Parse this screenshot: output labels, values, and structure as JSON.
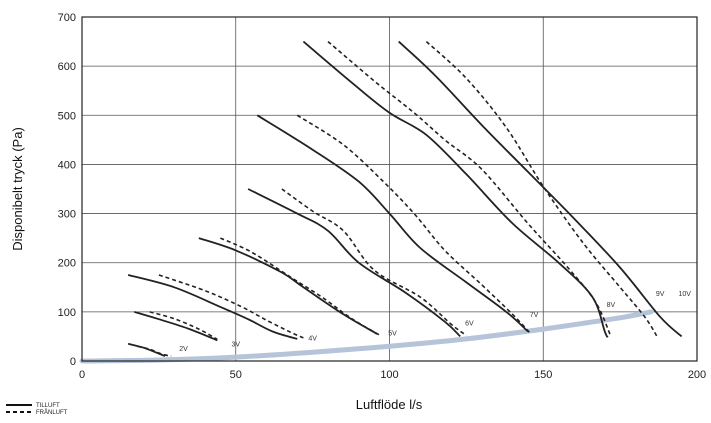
{
  "chart_data": {
    "type": "line",
    "xlabel": "Luftflöde l/s",
    "ylabel": "Disponibelt tryck (Pa)",
    "xlim": [
      0,
      200
    ],
    "ylim": [
      0,
      700
    ],
    "xticks": [
      0,
      50,
      100,
      150,
      200
    ],
    "yticks": [
      0,
      100,
      200,
      300,
      400,
      500,
      600,
      700
    ],
    "grid": true,
    "legend_position": "bottom-left",
    "legend": [
      {
        "label": "TILLUFT",
        "style": "solid"
      },
      {
        "label": "FRÅNLUFT",
        "style": "dashed"
      }
    ],
    "system_curve": {
      "color": "#b5c4d8",
      "points": [
        [
          0,
          0
        ],
        [
          25,
          2
        ],
        [
          50,
          8
        ],
        [
          75,
          18
        ],
        [
          100,
          30
        ],
        [
          125,
          45
        ],
        [
          150,
          65
        ],
        [
          175,
          88
        ],
        [
          185,
          100
        ]
      ]
    },
    "series": [
      {
        "voltage": "2V",
        "label_at": [
          33,
          20
        ],
        "tilluft": [
          [
            15,
            35
          ],
          [
            20,
            27
          ],
          [
            25,
            15
          ],
          [
            27,
            10
          ]
        ],
        "franluft": [
          [
            18,
            30
          ],
          [
            22,
            24
          ],
          [
            26,
            14
          ],
          [
            29,
            10
          ]
        ]
      },
      {
        "voltage": "3V",
        "label_at": [
          50,
          30
        ],
        "tilluft": [
          [
            17,
            100
          ],
          [
            25,
            85
          ],
          [
            35,
            65
          ],
          [
            44,
            42
          ]
        ],
        "franluft": [
          [
            22,
            100
          ],
          [
            30,
            86
          ],
          [
            38,
            65
          ],
          [
            44,
            44
          ]
        ]
      },
      {
        "voltage": "4V",
        "label_at": [
          75,
          42
        ],
        "tilluft": [
          [
            15,
            175
          ],
          [
            30,
            150
          ],
          [
            45,
            110
          ],
          [
            54,
            85
          ],
          [
            62,
            60
          ],
          [
            70,
            45
          ]
        ],
        "franluft": [
          [
            25,
            175
          ],
          [
            40,
            143
          ],
          [
            52,
            110
          ],
          [
            60,
            83
          ],
          [
            68,
            58
          ],
          [
            72,
            47
          ]
        ]
      },
      {
        "voltage": "5V",
        "label_at": [
          101,
          52
        ],
        "tilluft": [
          [
            38,
            250
          ],
          [
            50,
            225
          ],
          [
            65,
            180
          ],
          [
            72,
            150
          ],
          [
            85,
            95
          ],
          [
            96,
            55
          ]
        ],
        "franluft": [
          [
            45,
            250
          ],
          [
            55,
            222
          ],
          [
            68,
            170
          ],
          [
            78,
            130
          ],
          [
            88,
            85
          ],
          [
            97,
            52
          ]
        ]
      },
      {
        "voltage": "6V",
        "label_at": [
          126,
          72
        ],
        "tilluft": [
          [
            54,
            350
          ],
          [
            70,
            300
          ],
          [
            80,
            265
          ],
          [
            90,
            200
          ],
          [
            105,
            140
          ],
          [
            118,
            80
          ],
          [
            123,
            50
          ]
        ],
        "franluft": [
          [
            65,
            350
          ],
          [
            75,
            305
          ],
          [
            85,
            265
          ],
          [
            95,
            185
          ],
          [
            110,
            130
          ],
          [
            120,
            75
          ],
          [
            125,
            52
          ]
        ]
      },
      {
        "voltage": "7V",
        "label_at": [
          147,
          90
        ],
        "tilluft": [
          [
            57,
            500
          ],
          [
            75,
            430
          ],
          [
            90,
            365
          ],
          [
            100,
            300
          ],
          [
            110,
            230
          ],
          [
            125,
            160
          ],
          [
            138,
            100
          ],
          [
            145,
            60
          ]
        ],
        "franluft": [
          [
            70,
            500
          ],
          [
            85,
            440
          ],
          [
            98,
            365
          ],
          [
            108,
            300
          ],
          [
            118,
            225
          ],
          [
            130,
            155
          ],
          [
            140,
            95
          ],
          [
            146,
            55
          ]
        ]
      },
      {
        "voltage": "8V",
        "label_at": [
          172,
          110
        ],
        "tilluft": [
          [
            72,
            650
          ],
          [
            88,
            565
          ],
          [
            100,
            505
          ],
          [
            112,
            460
          ],
          [
            125,
            380
          ],
          [
            140,
            280
          ],
          [
            155,
            200
          ],
          [
            166,
            130
          ],
          [
            170,
            60
          ],
          [
            171,
            48
          ]
        ],
        "franluft": [
          [
            80,
            650
          ],
          [
            95,
            570
          ],
          [
            108,
            505
          ],
          [
            118,
            450
          ],
          [
            130,
            390
          ],
          [
            145,
            280
          ],
          [
            158,
            190
          ],
          [
            167,
            120
          ],
          [
            172,
            50
          ]
        ]
      },
      {
        "voltage": "9V",
        "label_at": [
          188,
          132
        ],
        "tilluft": [
          [
            103,
            650
          ],
          [
            115,
            580
          ],
          [
            130,
            480
          ],
          [
            145,
            385
          ],
          [
            160,
            290
          ],
          [
            175,
            190
          ],
          [
            188,
            90
          ],
          [
            195,
            50
          ]
        ],
        "franluft": [
          [
            112,
            650
          ],
          [
            125,
            575
          ],
          [
            138,
            475
          ],
          [
            150,
            355
          ],
          [
            163,
            240
          ],
          [
            175,
            150
          ],
          [
            183,
            90
          ],
          [
            187,
            50
          ]
        ]
      },
      {
        "voltage": "10V",
        "label_at": [
          196,
          132
        ],
        "tilluft": [],
        "franluft": []
      }
    ]
  }
}
